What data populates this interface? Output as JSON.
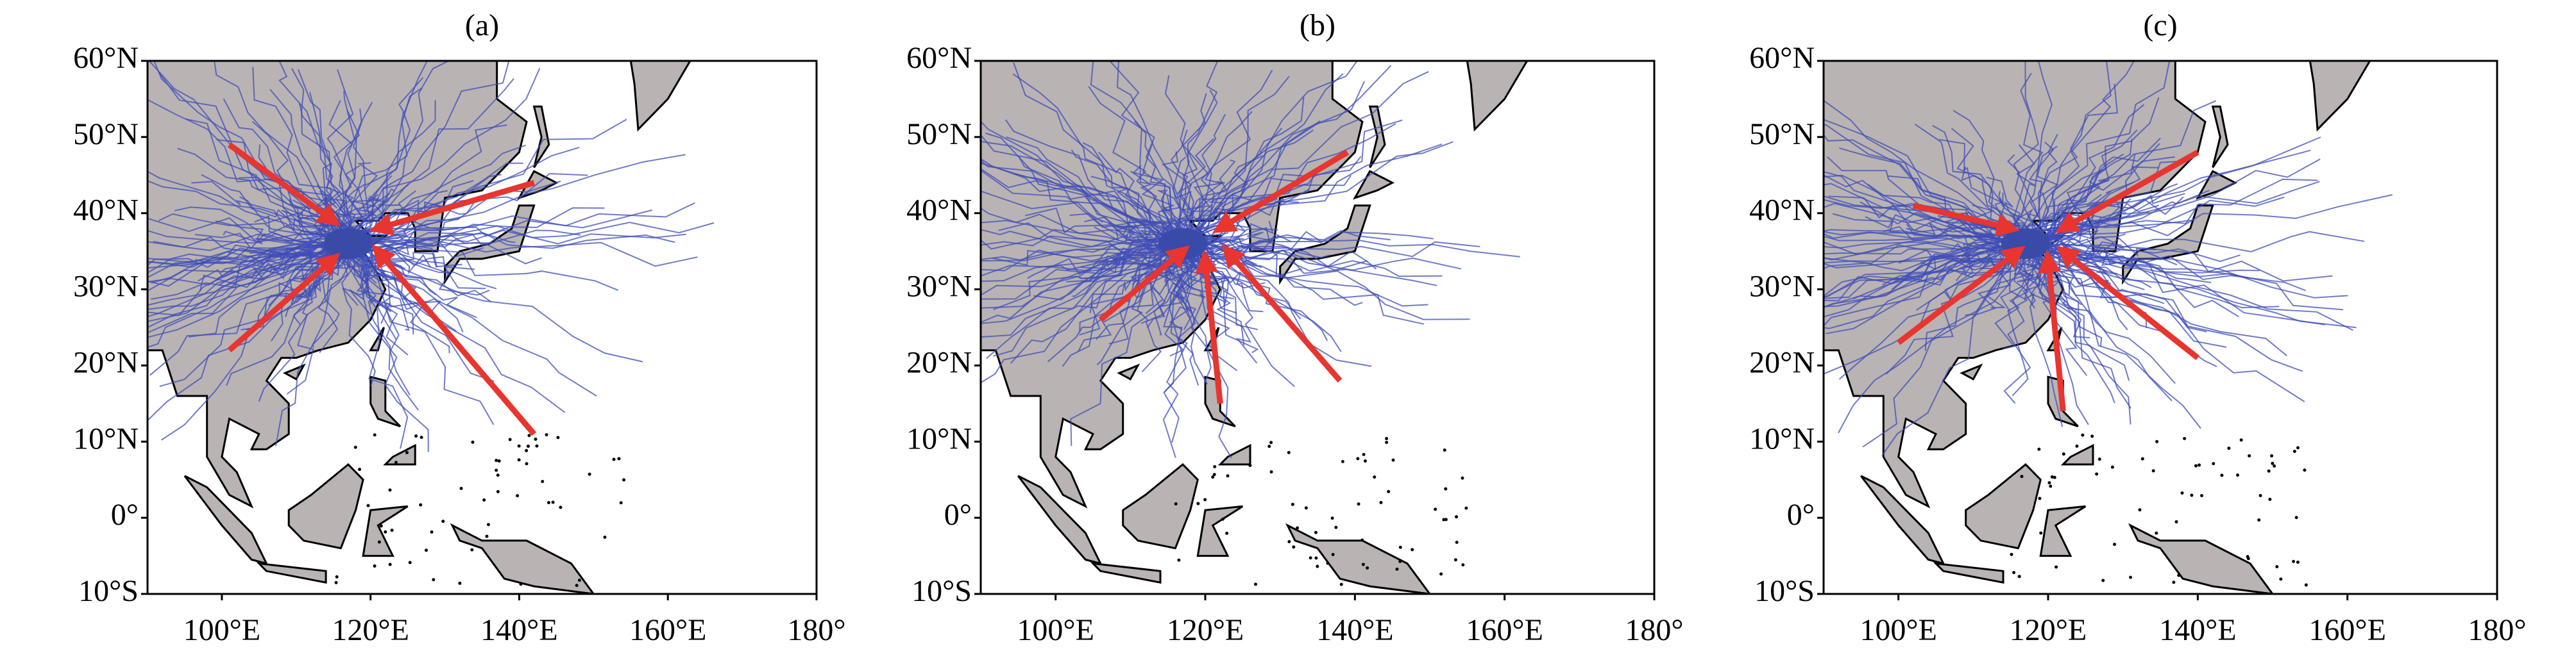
{
  "panels": [
    {
      "title": "(a)"
    },
    {
      "title": "(b)"
    },
    {
      "title": "(c)"
    }
  ],
  "map": {
    "xlim": [
      90,
      180
    ],
    "ylim": [
      -10,
      60
    ],
    "lon_ticks": [
      {
        "value": 100,
        "label": "100°E"
      },
      {
        "value": 120,
        "label": "120°E"
      },
      {
        "value": 140,
        "label": "140°E"
      },
      {
        "value": 160,
        "label": "160°E"
      },
      {
        "value": 180,
        "label": "180°"
      }
    ],
    "lat_ticks": [
      {
        "value": 60,
        "label": "60°N"
      },
      {
        "value": 50,
        "label": "50°N"
      },
      {
        "value": 40,
        "label": "40°N"
      },
      {
        "value": 30,
        "label": "30°N"
      },
      {
        "value": 20,
        "label": "20°N"
      },
      {
        "value": 10,
        "label": "10°N"
      },
      {
        "value": 0,
        "label": "0°"
      },
      {
        "value": -10,
        "label": "10°S"
      }
    ]
  }
}
